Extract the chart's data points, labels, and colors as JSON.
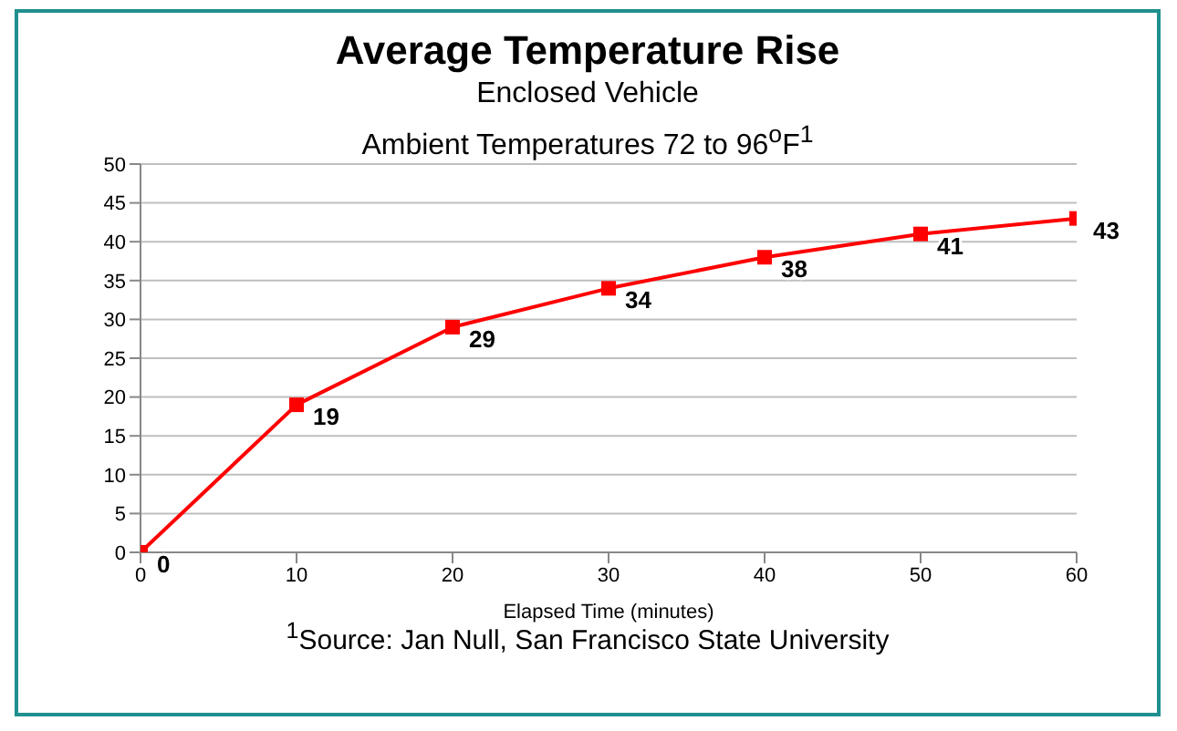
{
  "chart_data": {
    "type": "line",
    "title": "Average Temperature Rise",
    "subtitle": "Enclosed Vehicle\nAmbient Temperatures 72 to 96$^{o}$F$^{1}$",
    "xlabel": "Elapsed Time (minutes)",
    "annotations": [
      "$^{1}$Source: Jan Null, San Francisco State University"
    ],
    "x": [
      0,
      10,
      20,
      30,
      40,
      50,
      60
    ],
    "series": [
      {
        "color": "#ff0000",
        "values": [
          0,
          19,
          29,
          34,
          38,
          41,
          43
        ]
      }
    ],
    "xlim": [
      0,
      60
    ],
    "xticks": [
      0,
      10,
      20,
      30,
      40,
      50,
      60
    ],
    "ylim": [
      0,
      50
    ],
    "yticks": [
      0,
      5,
      10,
      15,
      20,
      25,
      30,
      35,
      40,
      45,
      50
    ],
    "grid": "y",
    "marker": "square",
    "line_style": "solid",
    "data_labels": true,
    "legend": false
  }
}
